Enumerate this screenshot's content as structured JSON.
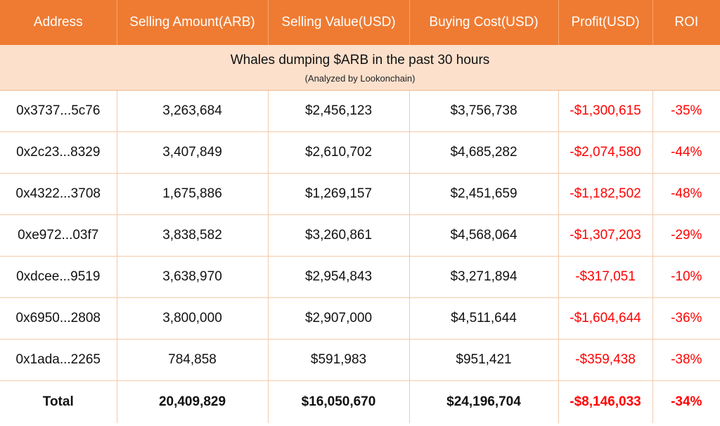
{
  "headers": [
    "Address",
    "Selling Amount(ARB)",
    "Selling Value(USD)",
    "Buying Cost(USD)",
    "Profit(USD)",
    "ROI"
  ],
  "banner": {
    "title": "Whales dumping $ARB in the past 30 hours",
    "subtitle": "(Analyzed by Lookonchain)"
  },
  "rows": [
    [
      "0x3737...5c76",
      "3,263,684",
      "$2,456,123",
      "$3,756,738",
      "-$1,300,615",
      "-35%"
    ],
    [
      "0x2c23...8329",
      "3,407,849",
      "$2,610,702",
      "$4,685,282",
      "-$2,074,580",
      "-44%"
    ],
    [
      "0x4322...3708",
      "1,675,886",
      "$1,269,157",
      "$2,451,659",
      "-$1,182,502",
      "-48%"
    ],
    [
      "0xe972...03f7",
      "3,838,582",
      "$3,260,861",
      "$4,568,064",
      "-$1,307,203",
      "-29%"
    ],
    [
      "0xdcee...9519",
      "3,638,970",
      "$2,954,843",
      "$3,271,894",
      "-$317,051",
      "-10%"
    ],
    [
      "0x6950...2808",
      "3,800,000",
      "$2,907,000",
      "$4,511,644",
      "-$1,604,644",
      "-36%"
    ],
    [
      "0x1ada...2265",
      "784,858",
      "$591,983",
      "$951,421",
      "-$359,438",
      "-38%"
    ]
  ],
  "total": [
    "Total",
    "20,409,829",
    "$16,050,670",
    "$24,196,704",
    "-$8,146,033",
    "-34%"
  ],
  "colors": {
    "header_bg": "#ef7b32",
    "banner_bg": "#fce0cc",
    "negative": "#ff0000"
  }
}
